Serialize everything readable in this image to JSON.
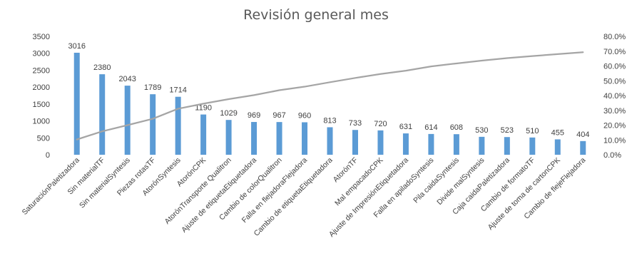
{
  "chart_data": {
    "type": "bar",
    "title": "Revisión general mes",
    "categories": [
      "SaturaciónPaletizadora",
      "Sin materialTF",
      "Sin materialSyntesis",
      "Piezas rotasTF",
      "AtorónSyntesis",
      "AtorónCPK",
      "AtorónTransporte Qualitron",
      "Ajuste de etiquetaEtiquetadora",
      "Cambio de colorQualitron",
      "Falla en flejadoraFlejadora",
      "Cambio de etiquetaEtiquetadora",
      "AtorónTF",
      "Mal empacadoCPK",
      "Ajuste de ImpresiónEtiquetadora",
      "Falla en apiladoSyntesis",
      "Pila caidaSyntesis",
      "Divide malSyntesis",
      "Caja caidaPaletizadora",
      "Cambio de formatoTF",
      "Ajuste de toma de cartonCPK",
      "Cambio de flejeFlejadora"
    ],
    "series": [
      {
        "type": "bar",
        "color": "#5b9bd5",
        "values": [
          3016,
          2380,
          2043,
          1789,
          1714,
          1190,
          1029,
          969,
          967,
          960,
          813,
          733,
          720,
          631,
          614,
          608,
          530,
          523,
          510,
          455,
          404
        ]
      },
      {
        "type": "line",
        "axis": "secondary",
        "color": "#a5a5a5",
        "values": [
          0.103,
          0.158,
          0.2,
          0.243,
          0.311,
          0.345,
          0.376,
          0.403,
          0.436,
          0.46,
          0.49,
          0.519,
          0.546,
          0.568,
          0.597,
          0.617,
          0.636,
          0.653,
          0.667,
          0.68,
          0.693
        ]
      }
    ],
    "y_ticks": [
      "0",
      "500",
      "1000",
      "1500",
      "2000",
      "2500",
      "3000",
      "3500"
    ],
    "y_secondary_ticks": [
      "0.0%",
      "10.0%",
      "20.0%",
      "30.0%",
      "40.0%",
      "50.0%",
      "60.0%",
      "70.0%",
      "80.0%"
    ],
    "ylim": [
      0,
      3500
    ],
    "y2lim": [
      0,
      0.8
    ],
    "grid": false,
    "legend": "none",
    "data_labels": true
  }
}
